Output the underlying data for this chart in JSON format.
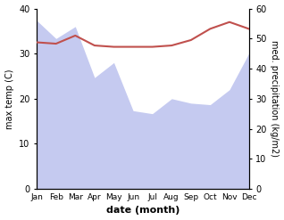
{
  "months": [
    "Jan",
    "Feb",
    "Mar",
    "Apr",
    "May",
    "Jun",
    "Jul",
    "Aug",
    "Sep",
    "Oct",
    "Nov",
    "Dec"
  ],
  "month_x": [
    1,
    2,
    3,
    4,
    5,
    6,
    7,
    8,
    9,
    10,
    11,
    12
  ],
  "max_temp": [
    32.5,
    32.2,
    34.0,
    31.8,
    31.5,
    31.5,
    31.5,
    31.8,
    33.0,
    35.5,
    37.0,
    35.5
  ],
  "precipitation": [
    56.0,
    50.0,
    54.0,
    37.0,
    42.0,
    26.0,
    25.0,
    30.0,
    28.5,
    28.0,
    33.0,
    45.0
  ],
  "temp_color": "#c0504d",
  "precip_fill_color": "#c5caf0",
  "precip_line_color": "#aab4e0",
  "temp_ylim": [
    0,
    40
  ],
  "precip_ylim": [
    0,
    60
  ],
  "temp_yticks": [
    0,
    10,
    20,
    30,
    40
  ],
  "precip_yticks": [
    0,
    10,
    20,
    30,
    40,
    50,
    60
  ],
  "xlabel": "date (month)",
  "ylabel_left": "max temp (C)",
  "ylabel_right": "med. precipitation (kg/m2)",
  "figsize": [
    3.18,
    2.47
  ],
  "dpi": 100
}
